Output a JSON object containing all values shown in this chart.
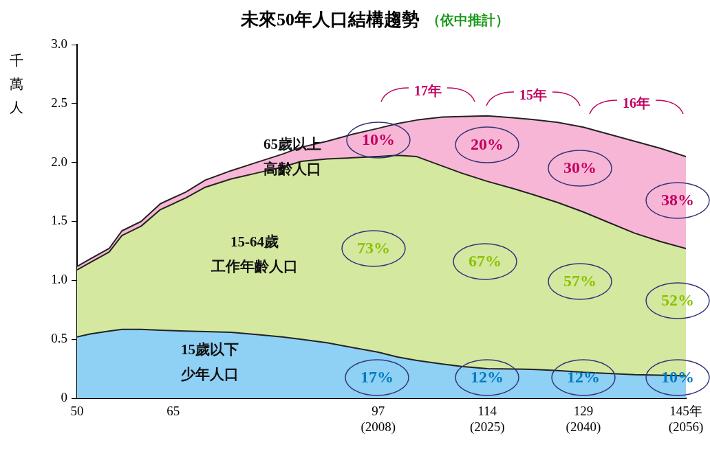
{
  "chart_data": {
    "type": "area",
    "stacked": true,
    "title": "未來50年人口結構趨勢",
    "subtitle": "（依中推計）",
    "ylabel": "千萬人",
    "x": [
      50,
      52,
      55,
      57,
      60,
      63,
      67,
      70,
      74,
      78,
      82,
      85,
      89,
      93,
      97,
      100,
      103,
      107,
      110,
      114,
      118,
      121,
      125,
      129,
      133,
      137,
      141,
      145
    ],
    "series": [
      {
        "name": "15歲以下少年人口",
        "color": "#8fd0f5",
        "values": [
          0.52,
          0.545,
          0.57,
          0.584,
          0.584,
          0.577,
          0.569,
          0.565,
          0.559,
          0.54,
          0.52,
          0.5,
          0.47,
          0.43,
          0.39,
          0.35,
          0.32,
          0.29,
          0.27,
          0.25,
          0.248,
          0.245,
          0.235,
          0.22,
          0.21,
          0.2,
          0.195,
          0.19
        ]
      },
      {
        "name": "15-64歲工作年齡人口",
        "color": "#d4e8a0",
        "values": [
          0.568,
          0.605,
          0.67,
          0.796,
          0.876,
          1.023,
          1.131,
          1.225,
          1.301,
          1.37,
          1.44,
          1.51,
          1.56,
          1.61,
          1.66,
          1.71,
          1.73,
          1.68,
          1.64,
          1.59,
          1.532,
          1.485,
          1.425,
          1.36,
          1.28,
          1.2,
          1.135,
          1.08
        ]
      },
      {
        "name": "65歲以上高齡人口",
        "color": "#f7b6d6",
        "values": [
          0.03,
          0.03,
          0.03,
          0.04,
          0.04,
          0.05,
          0.05,
          0.06,
          0.07,
          0.09,
          0.11,
          0.12,
          0.15,
          0.2,
          0.24,
          0.27,
          0.31,
          0.415,
          0.48,
          0.555,
          0.6,
          0.635,
          0.68,
          0.72,
          0.75,
          0.78,
          0.79,
          0.78
        ]
      }
    ],
    "xlim": [
      50,
      145
    ],
    "xticks": [
      50,
      65,
      {
        "value": 97,
        "label": "97\n(2008)"
      },
      {
        "value": 114,
        "label": "114\n(2025)"
      },
      {
        "value": 129,
        "label": "129\n(2040)"
      },
      {
        "value": 145,
        "label": "145年\n(2056)"
      }
    ],
    "ylim": [
      0,
      3
    ],
    "yticks": [
      0,
      0.5,
      {
        "value": 1,
        "label": "1.0"
      },
      1.5,
      {
        "value": 2,
        "label": "2.0"
      },
      2.5,
      {
        "value": 3,
        "label": "3.0"
      }
    ],
    "grid": false,
    "legend": false,
    "annotations": [
      "10%",
      "20%",
      "30%",
      "38%",
      "73%",
      "67%",
      "57%",
      "52%",
      "17%",
      "12%",
      "12%",
      "10%",
      "17年",
      "15年",
      "16年"
    ]
  }
}
